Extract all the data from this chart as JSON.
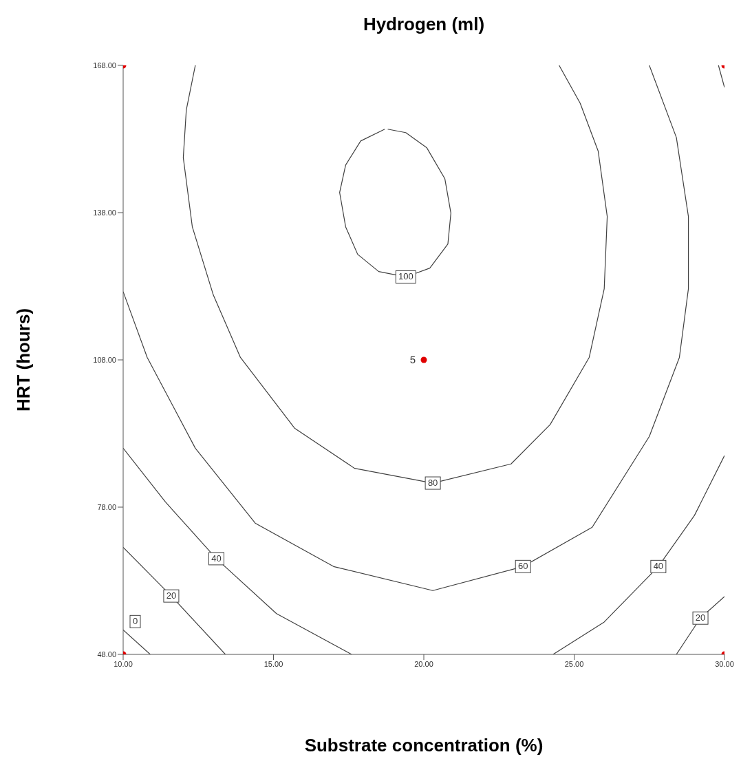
{
  "chart_data": {
    "type": "line",
    "title": "Hydrogen (ml)",
    "xlabel": "Substrate concentration (%)",
    "ylabel": "HRT (hours)",
    "xlim": [
      10,
      30
    ],
    "ylim": [
      48,
      168
    ],
    "xticks": [
      {
        "value": 10,
        "label": "10.00"
      },
      {
        "value": 15,
        "label": "15.00"
      },
      {
        "value": 20,
        "label": "20.00"
      },
      {
        "value": 25,
        "label": "25.00"
      },
      {
        "value": 30,
        "label": "30.00"
      }
    ],
    "yticks": [
      {
        "value": 48,
        "label": "48.00"
      },
      {
        "value": 78,
        "label": "78.00"
      },
      {
        "value": 108,
        "label": "108.00"
      },
      {
        "value": 138,
        "label": "138.00"
      },
      {
        "value": 168,
        "label": "168.00"
      }
    ],
    "grid": false,
    "legend": false,
    "line_style": "solid",
    "series": [
      {
        "name": "100",
        "color": "#404040",
        "marker": "none",
        "x": [
          18.7,
          17.9,
          17.4,
          17.2,
          17.4,
          17.8,
          18.5,
          19.4,
          20.2,
          20.8,
          20.9,
          20.7,
          20.1,
          19.4,
          18.8
        ],
        "values": [
          155.0,
          152.6,
          147.7,
          142.1,
          135.1,
          129.5,
          126.0,
          124.9,
          126.7,
          131.6,
          137.9,
          144.9,
          151.2,
          154.3,
          155.0
        ]
      },
      {
        "name": "80",
        "color": "#404040",
        "marker": "none",
        "x": [
          12.4,
          12.1,
          12.0,
          12.3,
          13.0,
          13.9,
          15.7,
          17.7,
          20.3,
          22.9,
          24.2,
          25.5,
          26.0,
          26.1,
          25.8,
          25.2,
          24.5
        ],
        "values": [
          168.0,
          158.9,
          149.2,
          135.1,
          121.2,
          108.5,
          94.1,
          85.9,
          82.9,
          86.8,
          94.8,
          108.5,
          122.5,
          137.2,
          150.5,
          160.3,
          168.0
        ]
      },
      {
        "name": "60",
        "color": "#404040",
        "marker": "none",
        "x": [
          10.0,
          10.8,
          12.4,
          14.4,
          17.0,
          20.3,
          23.3,
          25.6,
          27.5,
          28.5,
          28.8,
          28.8,
          28.4,
          27.5
        ],
        "values": [
          121.9,
          108.5,
          90.0,
          74.7,
          65.9,
          61.0,
          65.9,
          73.9,
          92.4,
          108.5,
          122.5,
          137.2,
          153.3,
          168.0
        ]
      },
      {
        "name": "40",
        "color": "#404040",
        "marker": "none",
        "x": [
          10.0,
          11.4,
          13.1,
          15.1,
          17.6,
          null,
          24.3,
          26.0,
          27.8,
          29.0,
          30.0
        ],
        "values": [
          90.0,
          79.1,
          67.5,
          56.3,
          48.0,
          null,
          48.0,
          54.6,
          65.9,
          76.3,
          88.5
        ]
      },
      {
        "name": "20",
        "color": "#404040",
        "marker": "none",
        "x": [
          10.0,
          11.6,
          13.4,
          null,
          28.4,
          29.2,
          30.0,
          null,
          29.8,
          30.0
        ],
        "values": [
          69.8,
          59.9,
          48.0,
          null,
          48.0,
          55.4,
          59.8,
          null,
          168.0,
          163.5
        ]
      },
      {
        "name": "0",
        "color": "#404040",
        "marker": "none",
        "x": [
          10.0,
          10.9
        ],
        "values": [
          53.0,
          48.0
        ]
      },
      {
        "type": "scatter",
        "color": "#e00000",
        "marker": "circle",
        "x": [
          10,
          30,
          10,
          30,
          20
        ],
        "values": [
          48,
          48,
          168,
          168,
          108
        ]
      }
    ],
    "annotations": [
      {
        "text": "5",
        "x": 20,
        "y": 108
      }
    ]
  }
}
